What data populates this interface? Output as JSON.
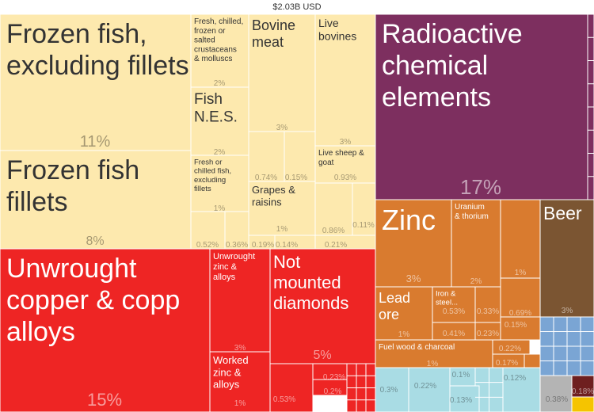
{
  "chart_data": {
    "type": "treemap",
    "title": "$2.03B USD",
    "colors": {
      "cream": "#FDE9AE",
      "purple": "#7D2F5F",
      "red": "#EE2524",
      "orange": "#D97B2F",
      "brown": "#7B5532",
      "blue": "#7AA5D4",
      "lightblue": "#A9DCE4",
      "gray": "#B4B4B4",
      "darkred": "#6E1F1F",
      "yellow": "#F5C400"
    },
    "blocks": [
      {
        "label": "Frozen fish, excluding fillets",
        "pct": "11%",
        "group": "cream"
      },
      {
        "label": "Frozen fish fillets",
        "pct": "8%",
        "group": "cream"
      },
      {
        "label": "Fresh, chilled, frozen or salted crustaceans & molluscs",
        "pct": "2%",
        "group": "cream"
      },
      {
        "label": "Fish N.E.S.",
        "pct": "2%",
        "group": "cream"
      },
      {
        "label": "Fresh or chilled fish, excluding fillets",
        "pct": "1%",
        "group": "cream"
      },
      {
        "label": "",
        "pct": "0.52%",
        "group": "cream"
      },
      {
        "label": "",
        "pct": "0.36%",
        "group": "cream"
      },
      {
        "label": "Bovine meat",
        "pct": "3%",
        "group": "cream"
      },
      {
        "label": "",
        "pct": "0.74%",
        "group": "cream"
      },
      {
        "label": "",
        "pct": "0.15%",
        "group": "cream"
      },
      {
        "label": "Grapes & raisins",
        "pct": "1%",
        "group": "cream"
      },
      {
        "label": "",
        "pct": "0.19%",
        "group": "cream"
      },
      {
        "label": "",
        "pct": "0.14%",
        "group": "cream"
      },
      {
        "label": "Live bovines",
        "pct": "3%",
        "group": "cream"
      },
      {
        "label": "Live sheep & goat",
        "pct": "0.93%",
        "group": "cream"
      },
      {
        "label": "",
        "pct": "0.86%",
        "group": "cream"
      },
      {
        "label": "",
        "pct": "0.11%",
        "group": "cream"
      },
      {
        "label": "",
        "pct": "0.21%",
        "group": "cream"
      },
      {
        "label": "Radioactive chemical elements",
        "pct": "17%",
        "group": "purple"
      },
      {
        "label": "Unwrought copper & copper alloys",
        "pct": "15%",
        "group": "red"
      },
      {
        "label": "Unwrought zinc & alloys",
        "pct": "3%",
        "group": "red"
      },
      {
        "label": "Worked zinc & alloys",
        "pct": "1%",
        "group": "red"
      },
      {
        "label": "Not mounted diamonds",
        "pct": "5%",
        "group": "red"
      },
      {
        "label": "",
        "pct": "0.23%",
        "group": "red"
      },
      {
        "label": "",
        "pct": "0.2%",
        "group": "red"
      },
      {
        "label": "",
        "pct": "0.53%",
        "group": "red"
      },
      {
        "label": "Zinc",
        "pct": "3%",
        "group": "orange"
      },
      {
        "label": "Uranium & thorium",
        "pct": "2%",
        "group": "orange"
      },
      {
        "label": "",
        "pct": "1%",
        "group": "orange"
      },
      {
        "label": "Lead ore",
        "pct": "1%",
        "group": "orange"
      },
      {
        "label": "Iron & steel...",
        "pct": "0.53%",
        "group": "orange"
      },
      {
        "label": "",
        "pct": "0.41%",
        "group": "orange"
      },
      {
        "label": "",
        "pct": "0.33%",
        "group": "orange"
      },
      {
        "label": "",
        "pct": "0.23%",
        "group": "orange"
      },
      {
        "label": "",
        "pct": "0.69%",
        "group": "orange"
      },
      {
        "label": "",
        "pct": "0.15%",
        "group": "orange"
      },
      {
        "label": "Fuel wood & charcoal",
        "pct": "1%",
        "group": "orange"
      },
      {
        "label": "",
        "pct": "0.22%",
        "group": "orange"
      },
      {
        "label": "",
        "pct": "0.17%",
        "group": "orange"
      },
      {
        "label": "Beer",
        "pct": "3%",
        "group": "brown"
      },
      {
        "label": "",
        "pct": "0.3%",
        "group": "lightblue"
      },
      {
        "label": "",
        "pct": "0.22%",
        "group": "lightblue"
      },
      {
        "label": "",
        "pct": "0.1%",
        "group": "lightblue"
      },
      {
        "label": "",
        "pct": "0.13%",
        "group": "lightblue"
      },
      {
        "label": "",
        "pct": "0.12%",
        "group": "lightblue"
      },
      {
        "label": "",
        "pct": "0.38%",
        "group": "gray"
      },
      {
        "label": "",
        "pct": "0.18%",
        "group": "darkred"
      }
    ]
  }
}
